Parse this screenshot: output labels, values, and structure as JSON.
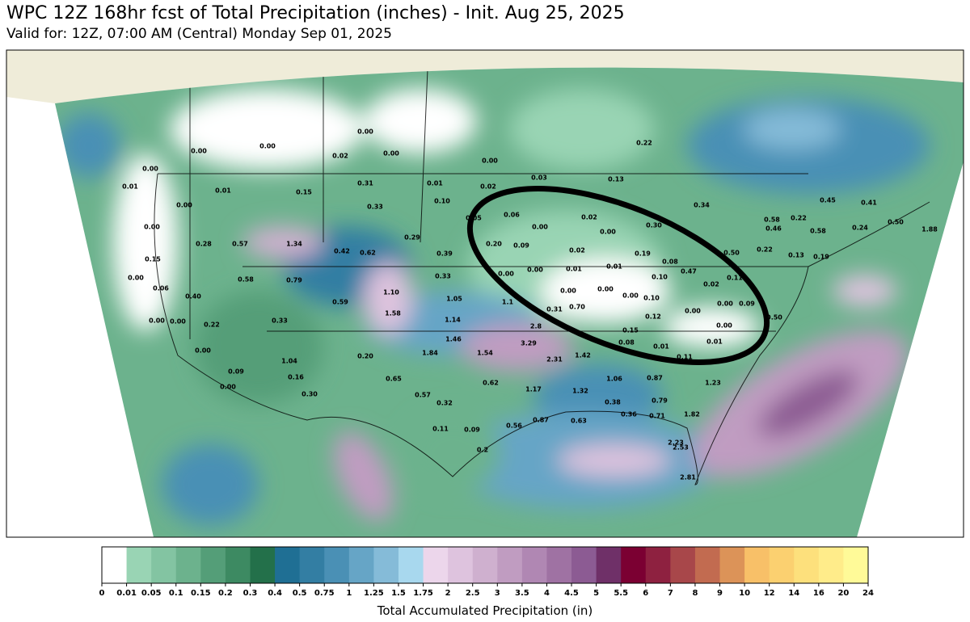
{
  "header": {
    "title": "WPC 12Z 168hr fcst of Total Precipitation (inches) - Init. Aug 25, 2025",
    "subtitle": "Valid for: 12Z, 07:00 AM (Central) Monday Sep 01, 2025"
  },
  "map_labels": [
    "0.00",
    "0.00",
    "0.02",
    "0.00",
    "0.00",
    "0.22",
    "0.00",
    "0.00",
    "0.01",
    "0.01",
    "0.15",
    "0.31",
    "0.01",
    "0.02",
    "0.03",
    "0.13",
    "0.00",
    "0.33",
    "0.10",
    "0.34",
    "0.45",
    "0.41",
    "0.00",
    "0.06",
    "0.02",
    "0.30",
    "0.58",
    "0.22",
    "0.50",
    "0.00",
    "0.00",
    "0.46",
    "0.58",
    "0.24",
    "1.88",
    "0.28",
    "0.57",
    "1.34",
    "0.29",
    "0.05",
    "0.20",
    "0.09",
    "0.02",
    "0.19",
    "0.50",
    "0.22",
    "0.13",
    "0.19",
    "0.42",
    "0.62",
    "0.39",
    "0.15",
    "0.08",
    "0.47",
    "0.00",
    "0.01",
    "0.01",
    "0.00",
    "0.33",
    "0.10",
    "0.11",
    "0.00",
    "0.58",
    "0.79",
    "0.02",
    "0.06",
    "1.10",
    "0.00",
    "0.00",
    "0.00",
    "0.10",
    "0.40",
    "0.59",
    "1.05",
    "1.1",
    "0.00",
    "0.00",
    "1.58",
    "0.31",
    "0.70",
    "0.12",
    "0.00",
    "0.00",
    "0.09",
    "0.22",
    "0.33",
    "1.14",
    "2.8",
    "0.00",
    "0.50",
    "1.46",
    "0.15",
    "0.08",
    "0.00",
    "0.20",
    "1.84",
    "1.54",
    "3.29",
    "2.31",
    "1.42",
    "0.01",
    "0.11",
    "0.01",
    "1.04",
    "0.09",
    "0.16",
    "0.65",
    "0.62",
    "1.06",
    "0.87",
    "1.23",
    "0.00",
    "0.30",
    "1.17",
    "1.32",
    "0.57",
    "0.32",
    "0.38",
    "0.79",
    "0.11",
    "0.09",
    "0.56",
    "0.87",
    "0.63",
    "0.36",
    "0.71",
    "1.82",
    "0.2",
    "2.53",
    "2.23",
    "2.81"
  ],
  "colorbar": {
    "title": "Total Accumulated Precipitation (in)",
    "levels": [
      0,
      0.01,
      0.05,
      0.1,
      0.15,
      0.2,
      0.3,
      0.4,
      0.5,
      0.75,
      1,
      1.25,
      1.5,
      1.75,
      2,
      2.5,
      3,
      3.5,
      4,
      4.5,
      5,
      5.5,
      6,
      7,
      8,
      9,
      10,
      12,
      14,
      16,
      20,
      24
    ],
    "colors": [
      "#ffffff",
      "#99d4b4",
      "#83c4a2",
      "#6cb28d",
      "#549e78",
      "#3d8a62",
      "#23704a",
      "#1f6f94",
      "#337ea3",
      "#4a90b5",
      "#66a5c6",
      "#85bbd8",
      "#a8d8ee",
      "#ecd6eb",
      "#dec3de",
      "#cfb0cf",
      "#c09cc1",
      "#b087b3",
      "#9f72a3",
      "#8c5b93",
      "#6f3068",
      "#7b0032",
      "#8e2140",
      "#a8474a",
      "#c26b50",
      "#dc9358",
      "#f8c068",
      "#fbd070",
      "#fde07c",
      "#ffec8a",
      "#fffa98"
    ]
  }
}
